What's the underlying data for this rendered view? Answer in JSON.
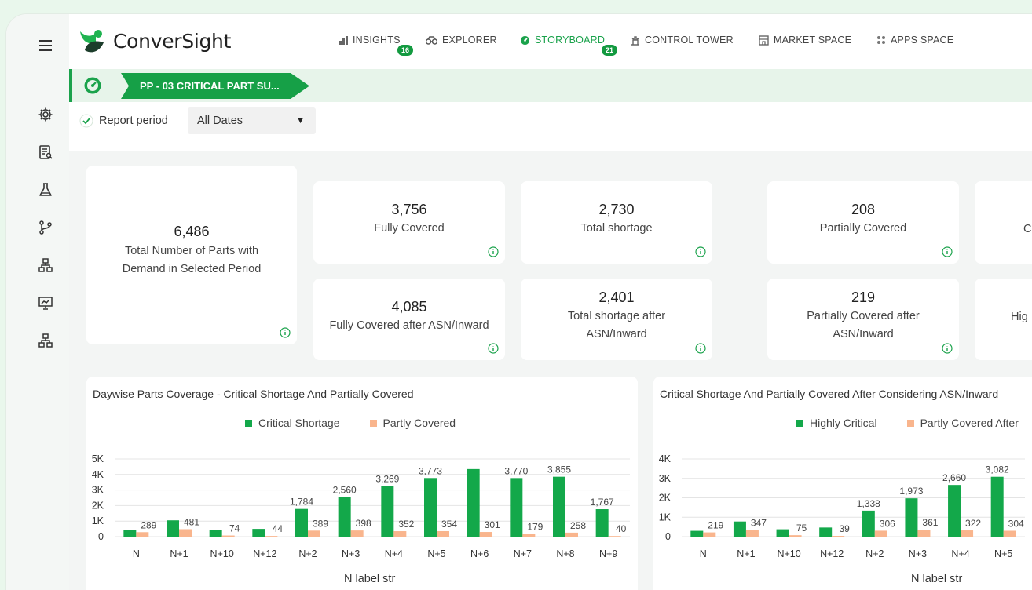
{
  "brand": {
    "name": "ConverSight"
  },
  "nav": [
    {
      "label": "INSIGHTS",
      "icon": "bar-chart-icon",
      "badge": "16",
      "active": false
    },
    {
      "label": "EXPLORER",
      "icon": "binoculars-icon",
      "badge": "",
      "active": false
    },
    {
      "label": "STORYBOARD",
      "icon": "storyboard-icon",
      "badge": "21",
      "active": true
    },
    {
      "label": "CONTROL TOWER",
      "icon": "tower-icon",
      "badge": "",
      "active": false
    },
    {
      "label": "MARKET SPACE",
      "icon": "store-icon",
      "badge": "",
      "active": false
    },
    {
      "label": "APPS SPACE",
      "icon": "apps-grid-icon",
      "badge": "",
      "active": false
    }
  ],
  "breadcrumb": {
    "title": "PP - 03 CRITICAL PART SU..."
  },
  "filter": {
    "label": "Report period",
    "value": "All Dates"
  },
  "rail_icons": [
    "menu-icon",
    "gear-icon",
    "report-icon",
    "flask-icon",
    "branch-icon",
    "hierarchy-icon",
    "presentation-icon",
    "org-chart-icon"
  ],
  "kpis": {
    "total_parts": {
      "value": "6,486",
      "label": "Total Number of Parts with Demand in Selected Period"
    },
    "fully_covered": {
      "value": "3,756",
      "label": "Fully Covered"
    },
    "total_shortage": {
      "value": "2,730",
      "label": "Total shortage"
    },
    "partially_covered": {
      "value": "208",
      "label": "Partially Covered"
    },
    "partial_top_cut": {
      "value": "",
      "label": "C"
    },
    "fully_covered_asn": {
      "value": "4,085",
      "label": "Fully Covered after ASN/Inward"
    },
    "total_shortage_asn": {
      "value": "2,401",
      "label": "Total shortage after ASN/Inward"
    },
    "partially_covered_asn": {
      "value": "219",
      "label": "Partially Covered after ASN/Inward"
    },
    "partial_bottom_cut": {
      "value": "",
      "label": "Hig"
    }
  },
  "colors": {
    "green": "#13a84a",
    "orange": "#f9b58d",
    "accent": "#1aa24b"
  },
  "chart_data": [
    {
      "type": "bar",
      "title": "Daywise Parts Coverage - Critical Shortage And Partially Covered",
      "xlabel": "N label str",
      "categories": [
        "N",
        "N+1",
        "N+10",
        "N+12",
        "N+2",
        "N+3",
        "N+4",
        "N+5",
        "N+6",
        "N+7",
        "N+8",
        "N+9"
      ],
      "series": [
        {
          "name": "Critical Shortage",
          "color": "#13a84a",
          "values": [
            450,
            1050,
            420,
            500,
            1784,
            2560,
            3269,
            3773,
            4350,
            3770,
            3855,
            1767
          ]
        },
        {
          "name": "Partly Covered",
          "color": "#f9b58d",
          "values": [
            289,
            481,
            74,
            44,
            389,
            398,
            352,
            354,
            301,
            179,
            258,
            40
          ]
        }
      ],
      "data_labels": {
        "Partly Covered": [
          "289",
          "481",
          "74",
          "44",
          "389",
          "398",
          "352",
          "354",
          "301",
          "179",
          "258",
          "40"
        ],
        "Critical Shortage": [
          "",
          "",
          "",
          "",
          "1,784",
          "2,560",
          "3,269",
          "3,773",
          "",
          "3,770",
          "3,855",
          "1,767"
        ]
      },
      "yticks": [
        "0",
        "1K",
        "2K",
        "3K",
        "4K",
        "5K"
      ],
      "ylim": [
        0,
        5000
      ]
    },
    {
      "type": "bar",
      "title": "Critical Shortage And Partially Covered After Considering ASN/Inward",
      "xlabel": "N label str",
      "categories": [
        "N",
        "N+1",
        "N+10",
        "N+12",
        "N+2",
        "N+3",
        "N+4",
        "N+5"
      ],
      "series": [
        {
          "name": "Highly Critical",
          "color": "#13a84a",
          "values": [
            300,
            780,
            380,
            470,
            1338,
            1973,
            2660,
            3082
          ]
        },
        {
          "name": "Partly Covered After",
          "color": "#f9b58d",
          "values": [
            219,
            347,
            75,
            39,
            306,
            361,
            322,
            304
          ]
        }
      ],
      "data_labels": {
        "Partly Covered After": [
          "219",
          "347",
          "75",
          "39",
          "306",
          "361",
          "322",
          "304"
        ],
        "Highly Critical": [
          "",
          "",
          "",
          "",
          "1,338",
          "1,973",
          "2,660",
          "3,082"
        ]
      },
      "yticks": [
        "0",
        "1K",
        "2K",
        "3K",
        "4K"
      ],
      "ylim": [
        0,
        4000
      ]
    }
  ]
}
